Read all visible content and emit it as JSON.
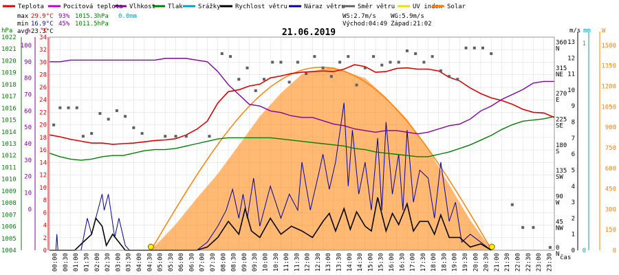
{
  "legend": [
    {
      "label": "Teplota",
      "color": "#e00000"
    },
    {
      "label": "Pocitová teplota",
      "color": "#c000c0"
    },
    {
      "label": "Vlhkost",
      "color": "#8000a0"
    },
    {
      "label": "Tlak",
      "color": "#008000"
    },
    {
      "label": "Srážky",
      "color": "#00a0c0"
    },
    {
      "label": "Rychlost větru",
      "color": "#000000"
    },
    {
      "label": "Náraz větru",
      "color": "#0000a0"
    },
    {
      "label": "Směr větru",
      "color": "#606060"
    },
    {
      "label": "UV index",
      "color": "#e8e000"
    },
    {
      "label": "Solar",
      "color": "#ff8000"
    }
  ],
  "stats": {
    "max_label": "max",
    "max_temp": "29.9°C",
    "max_hum": "93%",
    "max_press": "1015.3hPa",
    "max_rain": "0.0mm",
    "min_label": "min",
    "min_temp": "16.9°C",
    "min_hum": "45%",
    "min_press": "1011.5hPa",
    "avg_label": "avg",
    "avg_temp": "23.3°C",
    "ws": "WS:2.7m/s",
    "wg": "WG:5.9m/s",
    "sunrise": "Východ:04:49",
    "sunset": "Západ:21:02"
  },
  "axis_units": {
    "hpa": "hPa",
    "pct": "%",
    "degc": "°C",
    "ms": "m/s",
    "mm": "mm",
    "w": "W",
    "cas": "čas"
  },
  "chart_data": {
    "type": "line",
    "title": "21.06.2019",
    "x_ticks": [
      "00:00",
      "00:30",
      "01:00",
      "01:30",
      "02:00",
      "02:30",
      "03:00",
      "03:30",
      "04:00",
      "04:30",
      "05:00",
      "05:30",
      "06:00",
      "06:30",
      "07:00",
      "07:30",
      "08:00",
      "08:30",
      "09:00",
      "09:30",
      "10:00",
      "10:30",
      "11:00",
      "11:30",
      "12:00",
      "12:30",
      "13:00",
      "13:30",
      "14:00",
      "14:30",
      "15:00",
      "15:30",
      "16:00",
      "16:30",
      "17:00",
      "17:30",
      "18:00",
      "18:30",
      "19:00",
      "19:30",
      "20:00",
      "20:30",
      "21:00",
      "21:30",
      "22:00",
      "22:30",
      "23:00",
      "23:30"
    ],
    "axes": {
      "hpa": {
        "ticks": [
          "1004",
          "1005",
          "1006",
          "1007",
          "1008",
          "1009",
          "1010",
          "1011",
          "1012",
          "1013",
          "1014",
          "1015",
          "1016",
          "1017",
          "1018",
          "1019",
          "1020",
          "1021",
          "1022"
        ],
        "color": "#008000"
      },
      "pct": {
        "ticks": [
          "0",
          "10",
          "20",
          "30",
          "40",
          "50",
          "60",
          "70",
          "80",
          "90",
          "100"
        ],
        "color": "#8000a0"
      },
      "degc": {
        "ticks": [
          "0",
          "2",
          "4",
          "6",
          "8",
          "10",
          "12",
          "14",
          "16",
          "18",
          "20",
          "22",
          "24",
          "26",
          "28",
          "30",
          "32",
          "34"
        ],
        "color": "#e00000"
      },
      "ms": {
        "ticks": [
          "0",
          "1",
          "2",
          "3",
          "4",
          "5",
          "6",
          "7",
          "8",
          "9",
          "10",
          "11",
          "12",
          "13"
        ],
        "color": "#000000"
      },
      "dir": {
        "labels": [
          "N",
          "NW",
          "W",
          "SW",
          "S",
          "SE",
          "E",
          "NE",
          "N"
        ],
        "values": [
          "0",
          "45",
          "90",
          "135",
          "180",
          "225",
          "270",
          "315",
          "360"
        ]
      },
      "mm": {
        "ticks": [
          "0",
          "1"
        ],
        "color": "#00a0c0"
      },
      "w": {
        "ticks": [
          "0",
          "150",
          "300",
          "450",
          "600",
          "750",
          "900",
          "1050",
          "1200",
          "1350",
          "1500"
        ],
        "color": "#ff8000"
      }
    },
    "series": [
      {
        "name": "Teplota",
        "unit": "°C",
        "x_hours": [
          0,
          0.5,
          1,
          1.5,
          2,
          2.5,
          3,
          3.5,
          4,
          4.5,
          5,
          5.5,
          6,
          6.5,
          7,
          7.5,
          8,
          8.5,
          9,
          9.5,
          10,
          10.5,
          11,
          11.5,
          12,
          12.5,
          13,
          13.5,
          14,
          14.5,
          15,
          15.5,
          16,
          16.5,
          17,
          17.5,
          18,
          18.5,
          19,
          19.5,
          20,
          20.5,
          21,
          21.5,
          22,
          22.5,
          23,
          23.5,
          24
        ],
        "values": [
          18.4,
          18.1,
          17.7,
          17.4,
          17.1,
          17.1,
          16.9,
          17.0,
          17.1,
          17.3,
          17.5,
          17.6,
          17.8,
          18.4,
          19.3,
          20.6,
          23.5,
          25.3,
          25.6,
          26.2,
          26.5,
          27.5,
          27.8,
          28.2,
          28.4,
          28.5,
          28.6,
          28.5,
          28.9,
          29.6,
          29.3,
          28.4,
          28.5,
          29.0,
          29.1,
          28.9,
          28.9,
          28.6,
          27.6,
          27.0,
          25.9,
          25.0,
          24.3,
          23.9,
          23.3,
          22.5,
          22.0,
          21.9,
          21.2
        ]
      },
      {
        "name": "Vlhkost",
        "unit": "%",
        "x_hours": [
          0,
          0.5,
          1,
          1.5,
          2,
          2.5,
          3,
          3.5,
          4,
          4.5,
          5,
          5.5,
          6,
          6.5,
          7,
          7.5,
          8,
          8.5,
          9,
          9.5,
          10,
          10.5,
          11,
          11.5,
          12,
          12.5,
          13,
          13.5,
          14,
          14.5,
          15,
          15.5,
          16,
          16.5,
          17,
          17.5,
          18,
          18.5,
          19,
          19.5,
          20,
          20.5,
          21,
          21.5,
          22,
          22.5,
          23,
          23.5,
          24
        ],
        "values": [
          90,
          90,
          91,
          91,
          91,
          91,
          91,
          91,
          91,
          91,
          91,
          92,
          92,
          92,
          91,
          90,
          84,
          76,
          70,
          64,
          63,
          60,
          59,
          57,
          56,
          56,
          54,
          52,
          51,
          49,
          48,
          47,
          48,
          48,
          47,
          46,
          47,
          49,
          51,
          52,
          55,
          60,
          63,
          67,
          70,
          73,
          77,
          78,
          78
        ]
      },
      {
        "name": "Tlak",
        "unit": "hPa",
        "x_hours": [
          0,
          0.5,
          1,
          1.5,
          2,
          2.5,
          3,
          3.5,
          4,
          4.5,
          5,
          5.5,
          6,
          6.5,
          7,
          7.5,
          8,
          8.5,
          9,
          9.5,
          10,
          10.5,
          11,
          11.5,
          12,
          12.5,
          13,
          13.5,
          14,
          14.5,
          15,
          15.5,
          16,
          16.5,
          17,
          17.5,
          18,
          18.5,
          19,
          19.5,
          20,
          20.5,
          21,
          21.5,
          22,
          22.5,
          23,
          23.5,
          24
        ],
        "values": [
          1012.2,
          1011.9,
          1011.7,
          1011.6,
          1011.7,
          1011.9,
          1012.0,
          1012.0,
          1012.2,
          1012.4,
          1012.5,
          1012.5,
          1012.6,
          1012.8,
          1013.0,
          1013.2,
          1013.4,
          1013.5,
          1013.5,
          1013.5,
          1013.5,
          1013.5,
          1013.4,
          1013.3,
          1013.2,
          1013.1,
          1013.0,
          1012.9,
          1012.8,
          1012.6,
          1012.5,
          1012.3,
          1012.2,
          1012.1,
          1012.0,
          1011.9,
          1011.9,
          1012.1,
          1012.3,
          1012.6,
          1012.9,
          1013.3,
          1013.7,
          1014.2,
          1014.6,
          1014.9,
          1015.0,
          1015.1,
          1015.3
        ]
      },
      {
        "name": "Solar",
        "unit": "W",
        "x_hours": [
          4.82,
          6,
          7,
          8,
          9,
          10,
          11,
          12,
          13,
          13.5,
          14,
          15,
          16,
          17,
          18,
          19,
          20,
          21.03
        ],
        "values": [
          0,
          190,
          380,
          560,
          770,
          980,
          1150,
          1290,
          1330,
          1340,
          1310,
          1260,
          1120,
          960,
          740,
          480,
          220,
          0
        ]
      },
      {
        "name": "Rychlost větru",
        "unit": "m/s",
        "x_hours": [
          0,
          1.2,
          1.6,
          2,
          2.2,
          2.5,
          2.7,
          3,
          3.3,
          3.6,
          4,
          5,
          6,
          7,
          7.5,
          8,
          8.5,
          9,
          9.3,
          9.6,
          10,
          10.5,
          11,
          11.5,
          12,
          12.5,
          13,
          13.3,
          13.6,
          14,
          14.3,
          14.6,
          15,
          15.3,
          15.6,
          16,
          16.3,
          16.6,
          17,
          17.3,
          17.6,
          18,
          18.3,
          18.6,
          19,
          19.5,
          20,
          20.5,
          21
        ],
        "values": [
          0,
          0,
          0.5,
          1.0,
          2.0,
          1.5,
          0.3,
          1.0,
          0.5,
          0,
          0,
          0,
          0,
          0,
          0.2,
          0.8,
          1.8,
          1.0,
          2.6,
          1.2,
          0.8,
          2.0,
          1.0,
          1.5,
          1.2,
          0.8,
          1.8,
          2.3,
          1.2,
          2.6,
          1.3,
          2.4,
          1.5,
          1.2,
          3.3,
          1.2,
          2.3,
          1.6,
          2.9,
          1.2,
          1.8,
          1.8,
          1.0,
          2.2,
          0.8,
          0.8,
          0.2,
          0.4,
          0
        ]
      },
      {
        "name": "Náraz větru",
        "unit": "m/s",
        "x_hours": [
          0,
          0.3,
          0.35,
          0.4,
          1.5,
          1.8,
          2.0,
          2.3,
          2.5,
          2.6,
          2.8,
          3.1,
          3.3,
          3.6,
          3.8,
          4,
          6,
          7,
          7.5,
          8,
          8.4,
          8.7,
          9,
          9.2,
          9.4,
          9.7,
          10,
          10.5,
          11,
          11.4,
          11.8,
          12,
          12.4,
          12.8,
          13,
          13.3,
          13.6,
          14,
          14.2,
          14.4,
          14.7,
          15,
          15.3,
          15.6,
          15.8,
          16,
          16.3,
          16.6,
          16.8,
          17,
          17.3,
          17.6,
          18,
          18.3,
          18.6,
          19,
          19.3,
          19.6,
          20,
          20.5,
          21
        ],
        "values": [
          0,
          0,
          1.0,
          0,
          0,
          2.0,
          1.0,
          2.5,
          3.5,
          2.5,
          3.5,
          0.8,
          2.0,
          0.3,
          0,
          0,
          0,
          0,
          0.5,
          1.5,
          2.5,
          3.8,
          2.0,
          3.5,
          2.0,
          4.5,
          1.5,
          4.0,
          2.0,
          3.5,
          2.5,
          5.5,
          2.5,
          4.8,
          6.0,
          3.8,
          5.5,
          9.2,
          4.0,
          7.5,
          3.5,
          5.5,
          2.5,
          7.0,
          2.5,
          8.0,
          3.5,
          6.0,
          2.5,
          7.5,
          3.0,
          5.0,
          4.5,
          2.0,
          5.5,
          1.8,
          3.0,
          0.5,
          1.0,
          0.5,
          0
        ]
      },
      {
        "name": "Směr větru",
        "unit": "°",
        "x_hours": [
          0.2,
          0.5,
          0.9,
          1.3,
          1.6,
          2.0,
          2.4,
          2.8,
          3.2,
          3.6,
          4.0,
          4.4,
          5.5,
          6.0,
          6.5,
          7.6,
          8.2,
          8.6,
          9.0,
          9.4,
          9.8,
          10.2,
          10.6,
          11.0,
          11.4,
          11.8,
          12.2,
          12.6,
          13.0,
          13.4,
          13.8,
          14.2,
          14.6,
          15.0,
          15.4,
          15.8,
          16.2,
          16.6,
          17.0,
          17.4,
          17.8,
          18.2,
          18.6,
          19.0,
          19.4,
          19.8,
          20.2,
          20.6,
          21.0,
          22.0,
          22.5,
          23.0,
          23.8
        ],
        "values": [
          220,
          250,
          250,
          250,
          200,
          205,
          240,
          230,
          245,
          235,
          215,
          205,
          200,
          200,
          200,
          200,
          345,
          340,
          300,
          320,
          280,
          300,
          330,
          330,
          295,
          330,
          310,
          340,
          320,
          305,
          330,
          340,
          290,
          320,
          340,
          325,
          330,
          330,
          350,
          345,
          330,
          340,
          315,
          305,
          300,
          355,
          355,
          355,
          345,
          80,
          40,
          40,
          5
        ]
      }
    ]
  }
}
